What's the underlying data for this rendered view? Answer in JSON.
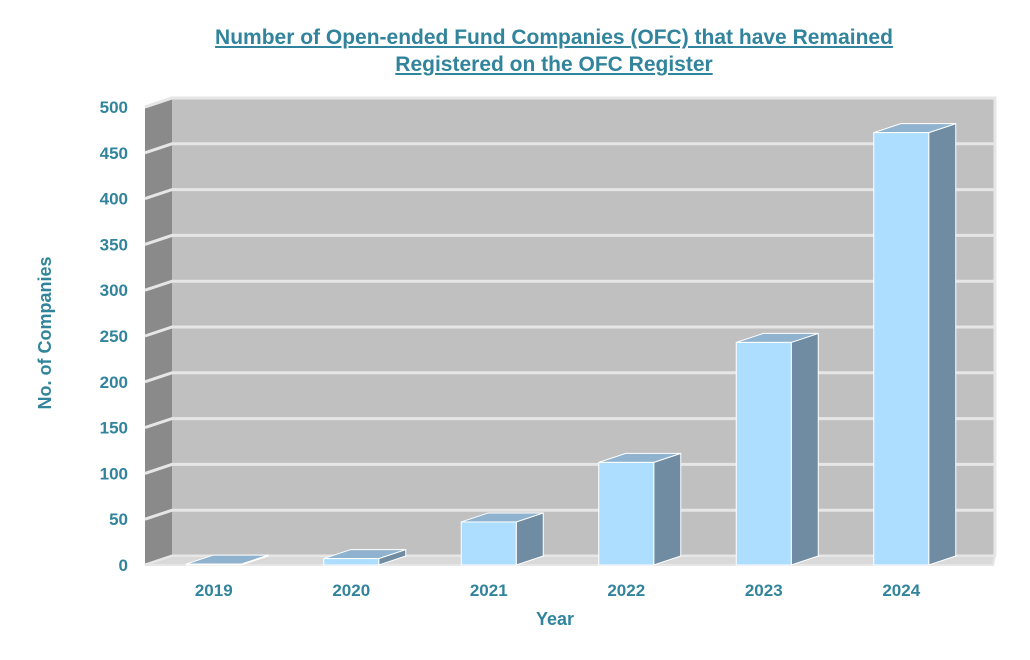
{
  "chart_data": {
    "type": "bar",
    "title_line1": "Number of Open-ended Fund Companies (OFC) that have Remained",
    "title_line2": "Registered on the OFC Register",
    "xlabel": "Year",
    "ylabel": "No. of Companies",
    "categories": [
      "2019",
      "2020",
      "2021",
      "2022",
      "2023",
      "2024"
    ],
    "values": [
      1,
      7,
      47,
      112,
      243,
      472
    ],
    "ylim": [
      0,
      500
    ],
    "yticks": [
      0,
      50,
      100,
      150,
      200,
      250,
      300,
      350,
      400,
      450,
      500
    ],
    "grid": true,
    "legend": "none"
  },
  "colors": {
    "title": "#31849B",
    "bar_front": "#ADDDFF",
    "bar_side": "#6F8CA3",
    "bar_top": "#8FB3CE",
    "wall": "#C0C0C0",
    "side_wall": "#8A8A8A",
    "gridline": "#E6E6E6"
  }
}
